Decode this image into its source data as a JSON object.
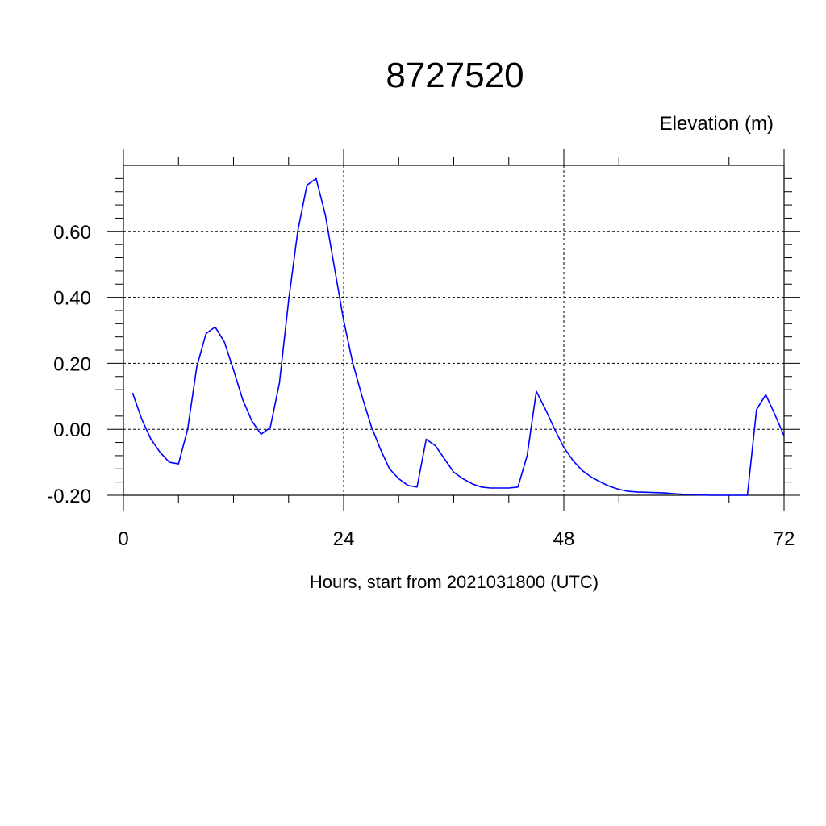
{
  "chart_data": {
    "type": "line",
    "title": "8727520",
    "ylabel": "Elevation (m)",
    "xlabel": "Hours, start from 2021031800 (UTC)",
    "xlim": [
      0,
      72
    ],
    "ylim": [
      -0.2,
      0.8
    ],
    "x_ticks": [
      0,
      24,
      48,
      72
    ],
    "x_tick_labels": [
      "0",
      "24",
      "48",
      "72"
    ],
    "y_ticks": [
      -0.2,
      0.0,
      0.2,
      0.4,
      0.6
    ],
    "y_tick_labels": [
      "-0.20",
      "0.00",
      "0.20",
      "0.40",
      "0.60"
    ],
    "grid": true,
    "series": [
      {
        "color": "#0000ff",
        "x": [
          1,
          2,
          3,
          4,
          5,
          6,
          7,
          8,
          9,
          10,
          11,
          12,
          13,
          14,
          15,
          16,
          17,
          18,
          19,
          20,
          21,
          22,
          23,
          24,
          25,
          26,
          27,
          28,
          29,
          30,
          31,
          32,
          33,
          34,
          35,
          36,
          37,
          38,
          39,
          40,
          41,
          42,
          43,
          44,
          45,
          46,
          47,
          48,
          49,
          50,
          51,
          52,
          53,
          54,
          55,
          56,
          57,
          58,
          59,
          60,
          61,
          62,
          63,
          64,
          65,
          66,
          67,
          68,
          69,
          70,
          71,
          72
        ],
        "y": [
          0.11,
          0.03,
          -0.03,
          -0.07,
          -0.1,
          -0.105,
          0.0,
          0.19,
          0.29,
          0.31,
          0.265,
          0.18,
          0.09,
          0.025,
          -0.015,
          0.005,
          0.14,
          0.39,
          0.6,
          0.74,
          0.76,
          0.65,
          0.49,
          0.33,
          0.2,
          0.1,
          0.01,
          -0.06,
          -0.12,
          -0.15,
          -0.17,
          -0.175,
          -0.03,
          -0.05,
          -0.09,
          -0.13,
          -0.15,
          -0.165,
          -0.175,
          -0.178,
          -0.178,
          -0.178,
          -0.175,
          -0.08,
          0.115,
          0.06,
          0.0,
          -0.055,
          -0.095,
          -0.125,
          -0.145,
          -0.16,
          -0.173,
          -0.182,
          -0.188,
          -0.19,
          -0.191,
          -0.192,
          -0.193,
          -0.195,
          -0.197,
          -0.198,
          -0.199,
          -0.2,
          -0.2,
          -0.2,
          -0.2,
          -0.2,
          0.06,
          0.105,
          0.045,
          -0.02
        ]
      }
    ]
  }
}
